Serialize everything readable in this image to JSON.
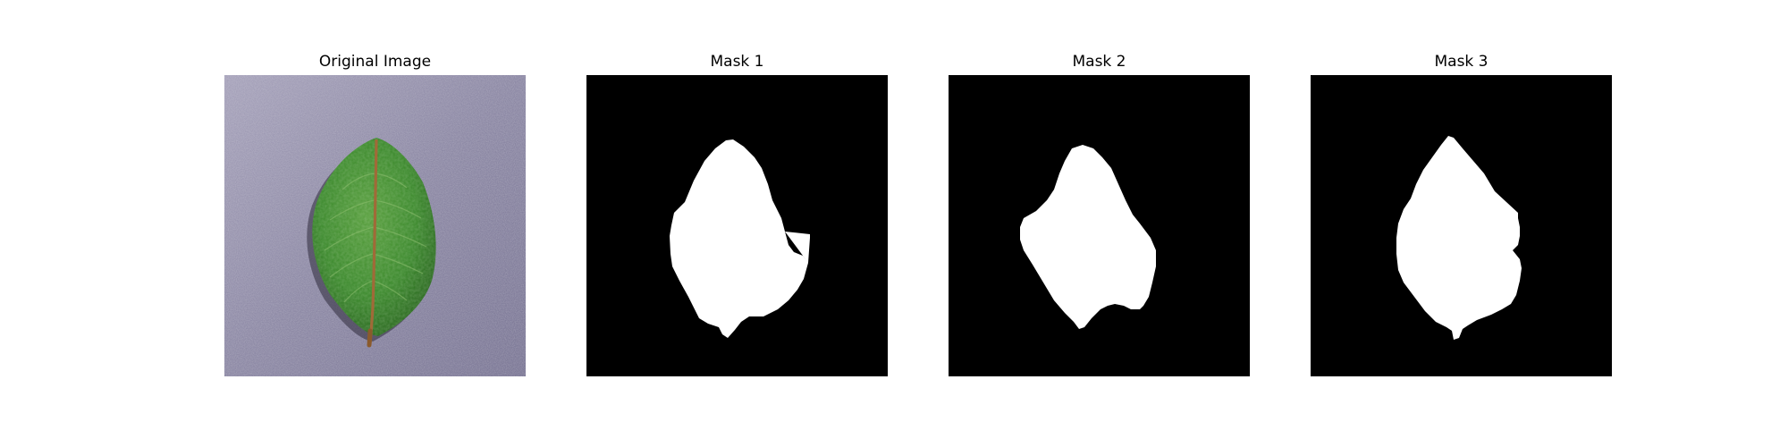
{
  "figure": {
    "panels": [
      {
        "title": "Original Image",
        "content": "photo-of-green-leaf"
      },
      {
        "title": "Mask 1",
        "content": "binary-mask"
      },
      {
        "title": "Mask 2",
        "content": "binary-mask"
      },
      {
        "title": "Mask 3",
        "content": "binary-mask"
      }
    ]
  },
  "colors": {
    "mask_background": "#000000",
    "mask_foreground": "#ffffff",
    "leaf_green": "#3f8a2c",
    "paper_lavender": "#8a86a2",
    "vein_color": "#9a6a3a"
  }
}
